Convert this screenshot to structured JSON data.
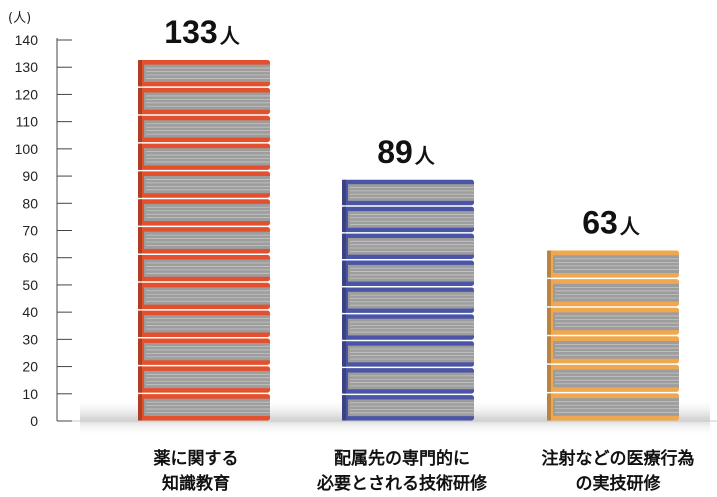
{
  "chart_data": {
    "type": "bar",
    "unit_label": "(人)",
    "ylim": [
      0,
      140
    ],
    "yticks": [
      0,
      10,
      20,
      30,
      40,
      50,
      60,
      70,
      80,
      90,
      100,
      110,
      120,
      130,
      140
    ],
    "categories": [
      [
        "薬に関する",
        "知識教育"
      ],
      [
        "配属先の専門的に",
        "必要とされる技術研修"
      ],
      [
        "注射などの医療行為",
        "の実技研修"
      ]
    ],
    "values": [
      133,
      89,
      63
    ],
    "value_unit": "人",
    "colors": [
      "#e2502d",
      "#4b55a5",
      "#f0a850"
    ]
  }
}
